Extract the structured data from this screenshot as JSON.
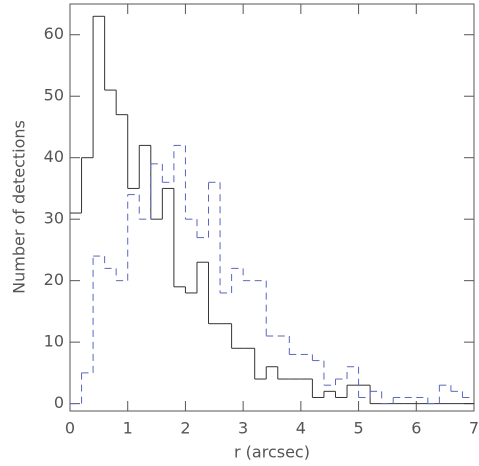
{
  "chart_data": {
    "type": "histogram",
    "xlabel": "r (arcsec)",
    "ylabel": "Number of detections",
    "bins": [
      0,
      0.2,
      0.4,
      0.6,
      0.8,
      1.0,
      1.2,
      1.4,
      1.6,
      1.8,
      2.0,
      2.2,
      2.4,
      2.6,
      2.8,
      3.0,
      3.2,
      3.4,
      3.6,
      3.8,
      4.0,
      4.2,
      4.4,
      4.6,
      4.8,
      5.0,
      5.2,
      5.4,
      5.6,
      5.8,
      6.0,
      6.2,
      6.4,
      6.6,
      6.8,
      7.0
    ],
    "series": [
      {
        "color": "#333333",
        "dash": false,
        "values": [
          31,
          40,
          63,
          51,
          47,
          35,
          42,
          30,
          35,
          19,
          18,
          23,
          13,
          13,
          9,
          9,
          4,
          6,
          4,
          4,
          4,
          1,
          2,
          1,
          3,
          3,
          0,
          0,
          0,
          0,
          0,
          0,
          0,
          0,
          0
        ]
      },
      {
        "color": "#5a66c0",
        "dash": true,
        "values": [
          0,
          5,
          24,
          22,
          20,
          34,
          30,
          39,
          36,
          42,
          30,
          27,
          36,
          18,
          22,
          20,
          20,
          11,
          11,
          8,
          8,
          7,
          3,
          4,
          6,
          1,
          2,
          0,
          1,
          1,
          1,
          0,
          3,
          2,
          1
        ]
      }
    ],
    "xlim": [
      0,
      7
    ],
    "ylim": [
      -1.2,
      65
    ],
    "xticks": [
      0,
      1,
      2,
      3,
      4,
      5,
      6,
      7
    ],
    "yticks": [
      0,
      10,
      20,
      30,
      40,
      50,
      60
    ],
    "grid": false
  }
}
